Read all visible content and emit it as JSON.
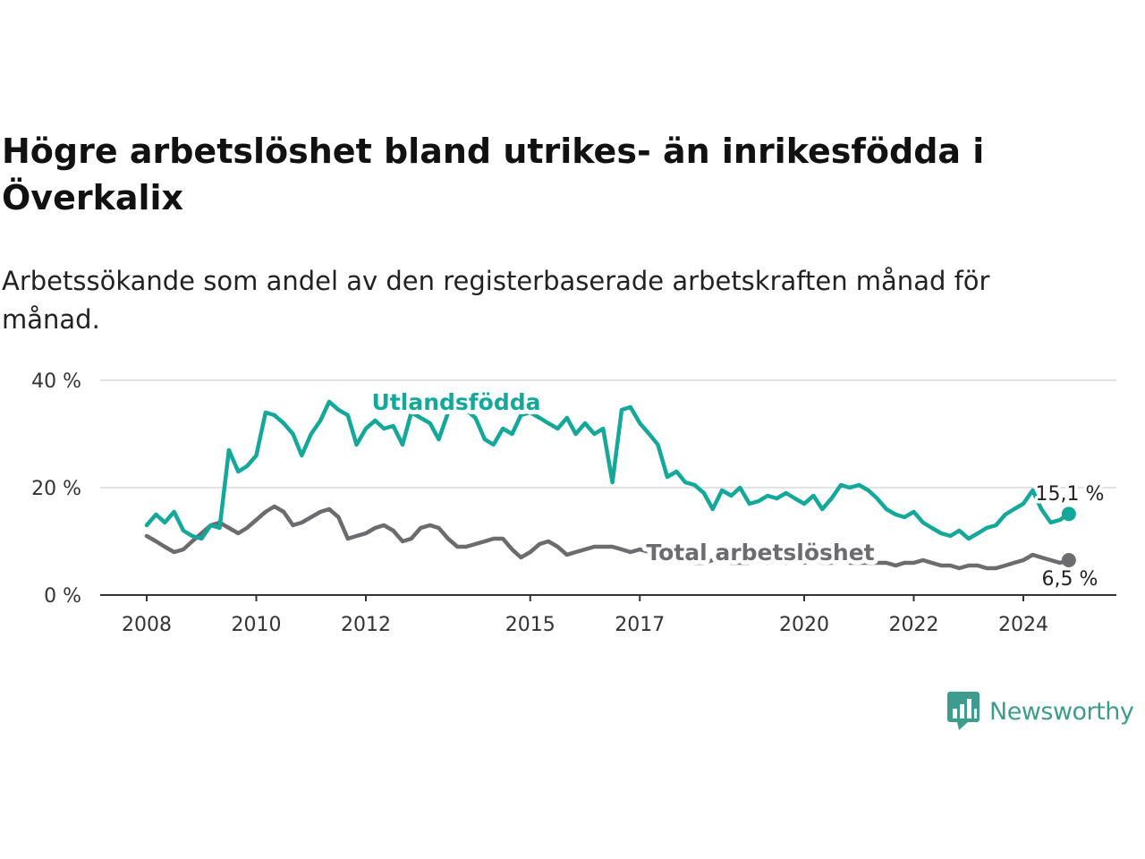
{
  "title": "Högre arbetslöshet bland utrikes- än inrikesfödda i Överkalix",
  "subtitle": "Arbetssökande som andel av den registerbaserade arbetskraften månad för månad.",
  "brand": {
    "name": "Newsworthy",
    "icon": "newsworthy-logo-icon",
    "color": "#3d9c8e"
  },
  "chart_data": {
    "type": "line",
    "x_ticks": [
      "2008",
      "2010",
      "2012",
      "2015",
      "2017",
      "2020",
      "2022",
      "2024"
    ],
    "y_ticks": [
      "0 %",
      "20 %",
      "40 %"
    ],
    "ylim": [
      0,
      40
    ],
    "grid": "horizontal",
    "series": [
      {
        "name": "Utlandsfödda",
        "color": "#13a89a",
        "end_label": "15,1 %",
        "end_value": 15.1,
        "x": [
          2008.0,
          2008.17,
          2008.33,
          2008.5,
          2008.67,
          2008.83,
          2009.0,
          2009.17,
          2009.33,
          2009.5,
          2009.67,
          2009.83,
          2010.0,
          2010.17,
          2010.33,
          2010.5,
          2010.67,
          2010.83,
          2011.0,
          2011.17,
          2011.33,
          2011.5,
          2011.67,
          2011.83,
          2012.0,
          2012.17,
          2012.33,
          2012.5,
          2012.67,
          2012.83,
          2013.0,
          2013.17,
          2013.33,
          2013.5,
          2013.67,
          2013.83,
          2014.0,
          2014.17,
          2014.33,
          2014.5,
          2014.67,
          2014.83,
          2015.0,
          2015.17,
          2015.33,
          2015.5,
          2015.67,
          2015.83,
          2016.0,
          2016.17,
          2016.33,
          2016.5,
          2016.67,
          2016.83,
          2017.0,
          2017.17,
          2017.33,
          2017.5,
          2017.67,
          2017.83,
          2018.0,
          2018.17,
          2018.33,
          2018.5,
          2018.67,
          2018.83,
          2019.0,
          2019.17,
          2019.33,
          2019.5,
          2019.67,
          2019.83,
          2020.0,
          2020.17,
          2020.33,
          2020.5,
          2020.67,
          2020.83,
          2021.0,
          2021.17,
          2021.33,
          2021.5,
          2021.67,
          2021.83,
          2022.0,
          2022.17,
          2022.33,
          2022.5,
          2022.67,
          2022.83,
          2023.0,
          2023.17,
          2023.33,
          2023.5,
          2023.67,
          2023.83,
          2024.0,
          2024.17,
          2024.33,
          2024.5,
          2024.67,
          2024.83
        ],
        "y": [
          13.0,
          15.0,
          13.5,
          15.5,
          12.0,
          11.0,
          10.5,
          13.0,
          12.5,
          27.0,
          23.0,
          24.0,
          26.0,
          34.0,
          33.5,
          32.0,
          30.0,
          26.0,
          30.0,
          32.5,
          36.0,
          34.5,
          33.5,
          28.0,
          31.0,
          32.5,
          31.0,
          31.5,
          28.0,
          34.0,
          33.0,
          32.0,
          29.0,
          34.0,
          35.0,
          34.5,
          33.0,
          29.0,
          28.0,
          31.0,
          30.0,
          33.5,
          34.0,
          33.0,
          32.0,
          31.0,
          33.0,
          30.0,
          32.0,
          30.0,
          31.0,
          21.0,
          34.5,
          35.0,
          32.0,
          30.0,
          28.0,
          22.0,
          23.0,
          21.0,
          20.5,
          19.0,
          16.0,
          19.5,
          18.5,
          20.0,
          17.0,
          17.5,
          18.5,
          18.0,
          19.0,
          18.0,
          17.0,
          18.5,
          16.0,
          18.0,
          20.5,
          20.0,
          20.5,
          19.5,
          18.0,
          16.0,
          15.0,
          14.5,
          15.5,
          13.5,
          12.5,
          11.5,
          11.0,
          12.0,
          10.5,
          11.5,
          12.5,
          13.0,
          15.0,
          16.0,
          17.0,
          19.5,
          16.0,
          13.5,
          14.0,
          15.1
        ]
      },
      {
        "name": "Total arbetslöshet",
        "color": "#6d6a70",
        "end_label": "6,5 %",
        "end_value": 6.5,
        "x": [
          2008.0,
          2008.17,
          2008.33,
          2008.5,
          2008.67,
          2008.83,
          2009.0,
          2009.17,
          2009.33,
          2009.5,
          2009.67,
          2009.83,
          2010.0,
          2010.17,
          2010.33,
          2010.5,
          2010.67,
          2010.83,
          2011.0,
          2011.17,
          2011.33,
          2011.5,
          2011.67,
          2011.83,
          2012.0,
          2012.17,
          2012.33,
          2012.5,
          2012.67,
          2012.83,
          2013.0,
          2013.17,
          2013.33,
          2013.5,
          2013.67,
          2013.83,
          2014.0,
          2014.17,
          2014.33,
          2014.5,
          2014.67,
          2014.83,
          2015.0,
          2015.17,
          2015.33,
          2015.5,
          2015.67,
          2015.83,
          2016.0,
          2016.17,
          2016.33,
          2016.5,
          2016.67,
          2016.83,
          2017.0,
          2017.17,
          2017.33,
          2017.5,
          2017.67,
          2017.83,
          2018.0,
          2018.17,
          2018.33,
          2018.5,
          2018.67,
          2018.83,
          2019.0,
          2019.17,
          2019.33,
          2019.5,
          2019.67,
          2019.83,
          2020.0,
          2020.17,
          2020.33,
          2020.5,
          2020.67,
          2020.83,
          2021.0,
          2021.17,
          2021.33,
          2021.5,
          2021.67,
          2021.83,
          2022.0,
          2022.17,
          2022.33,
          2022.5,
          2022.67,
          2022.83,
          2023.0,
          2023.17,
          2023.33,
          2023.5,
          2023.67,
          2023.83,
          2024.0,
          2024.17,
          2024.33,
          2024.5,
          2024.67,
          2024.83
        ],
        "y": [
          11.0,
          10.0,
          9.0,
          8.0,
          8.5,
          10.0,
          11.5,
          13.0,
          13.5,
          12.5,
          11.5,
          12.5,
          14.0,
          15.5,
          16.5,
          15.5,
          13.0,
          13.5,
          14.5,
          15.5,
          16.0,
          14.5,
          10.5,
          11.0,
          11.5,
          12.5,
          13.0,
          12.0,
          10.0,
          10.5,
          12.5,
          13.0,
          12.5,
          10.5,
          9.0,
          9.0,
          9.5,
          10.0,
          10.5,
          10.5,
          8.5,
          7.0,
          8.0,
          9.5,
          10.0,
          9.0,
          7.5,
          8.0,
          8.5,
          9.0,
          9.0,
          9.0,
          8.5,
          8.0,
          8.5,
          8.0,
          7.5,
          7.0,
          7.0,
          6.5,
          6.0,
          6.0,
          6.5,
          6.5,
          6.0,
          6.0,
          6.0,
          6.5,
          6.0,
          6.5,
          6.0,
          6.5,
          6.0,
          6.5,
          6.0,
          6.0,
          6.5,
          6.0,
          6.0,
          6.0,
          6.0,
          6.0,
          5.5,
          6.0,
          6.0,
          6.5,
          6.0,
          5.5,
          5.5,
          5.0,
          5.5,
          5.5,
          5.0,
          5.0,
          5.5,
          6.0,
          6.5,
          7.5,
          7.0,
          6.5,
          6.0,
          6.5
        ]
      }
    ]
  }
}
